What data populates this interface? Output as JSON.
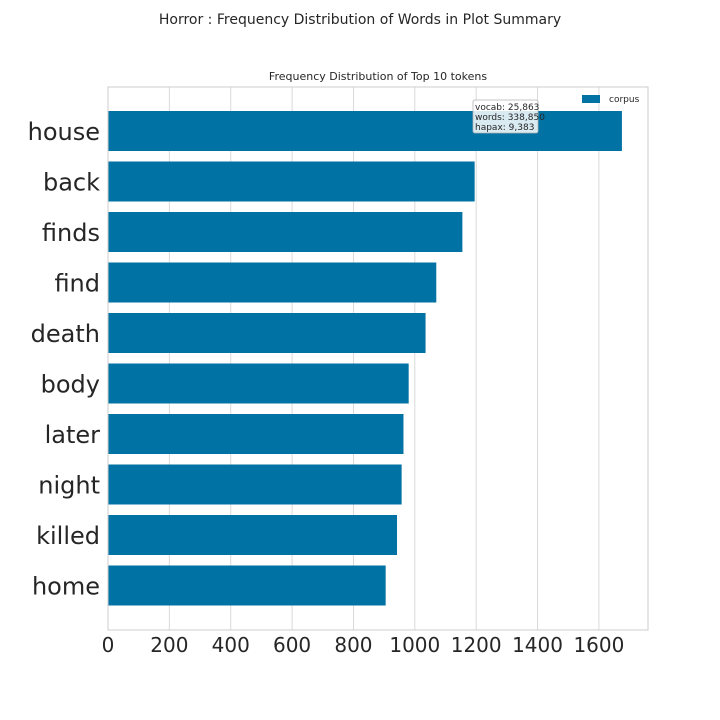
{
  "figure": {
    "suptitle": "Horror : Frequency Distribution of Words in Plot Summary"
  },
  "chart_data": {
    "type": "bar",
    "orientation": "horizontal",
    "title": "Frequency Distribution of Top 10 tokens",
    "categories": [
      "house",
      "back",
      "finds",
      "find",
      "death",
      "body",
      "later",
      "night",
      "killed",
      "home"
    ],
    "series": [
      {
        "name": "corpus",
        "values": [
          1675,
          1195,
          1155,
          1070,
          1035,
          980,
          963,
          957,
          942,
          905
        ],
        "color": "#0072a3"
      }
    ],
    "xlim": [
      0,
      1760
    ],
    "xticks": [
      0,
      200,
      400,
      600,
      800,
      1000,
      1200,
      1400,
      1600
    ],
    "grid": true,
    "legend": {
      "position": "top-right",
      "entries": [
        "corpus"
      ]
    },
    "annotation": {
      "lines": [
        "vocab: 25,863",
        "words: 338,850",
        "hapax: 9,383"
      ]
    }
  },
  "colors": {
    "bar": "#0072a3",
    "grid": "#d9d9d9",
    "axes_edge": "#cccccc",
    "text": "#262626"
  }
}
